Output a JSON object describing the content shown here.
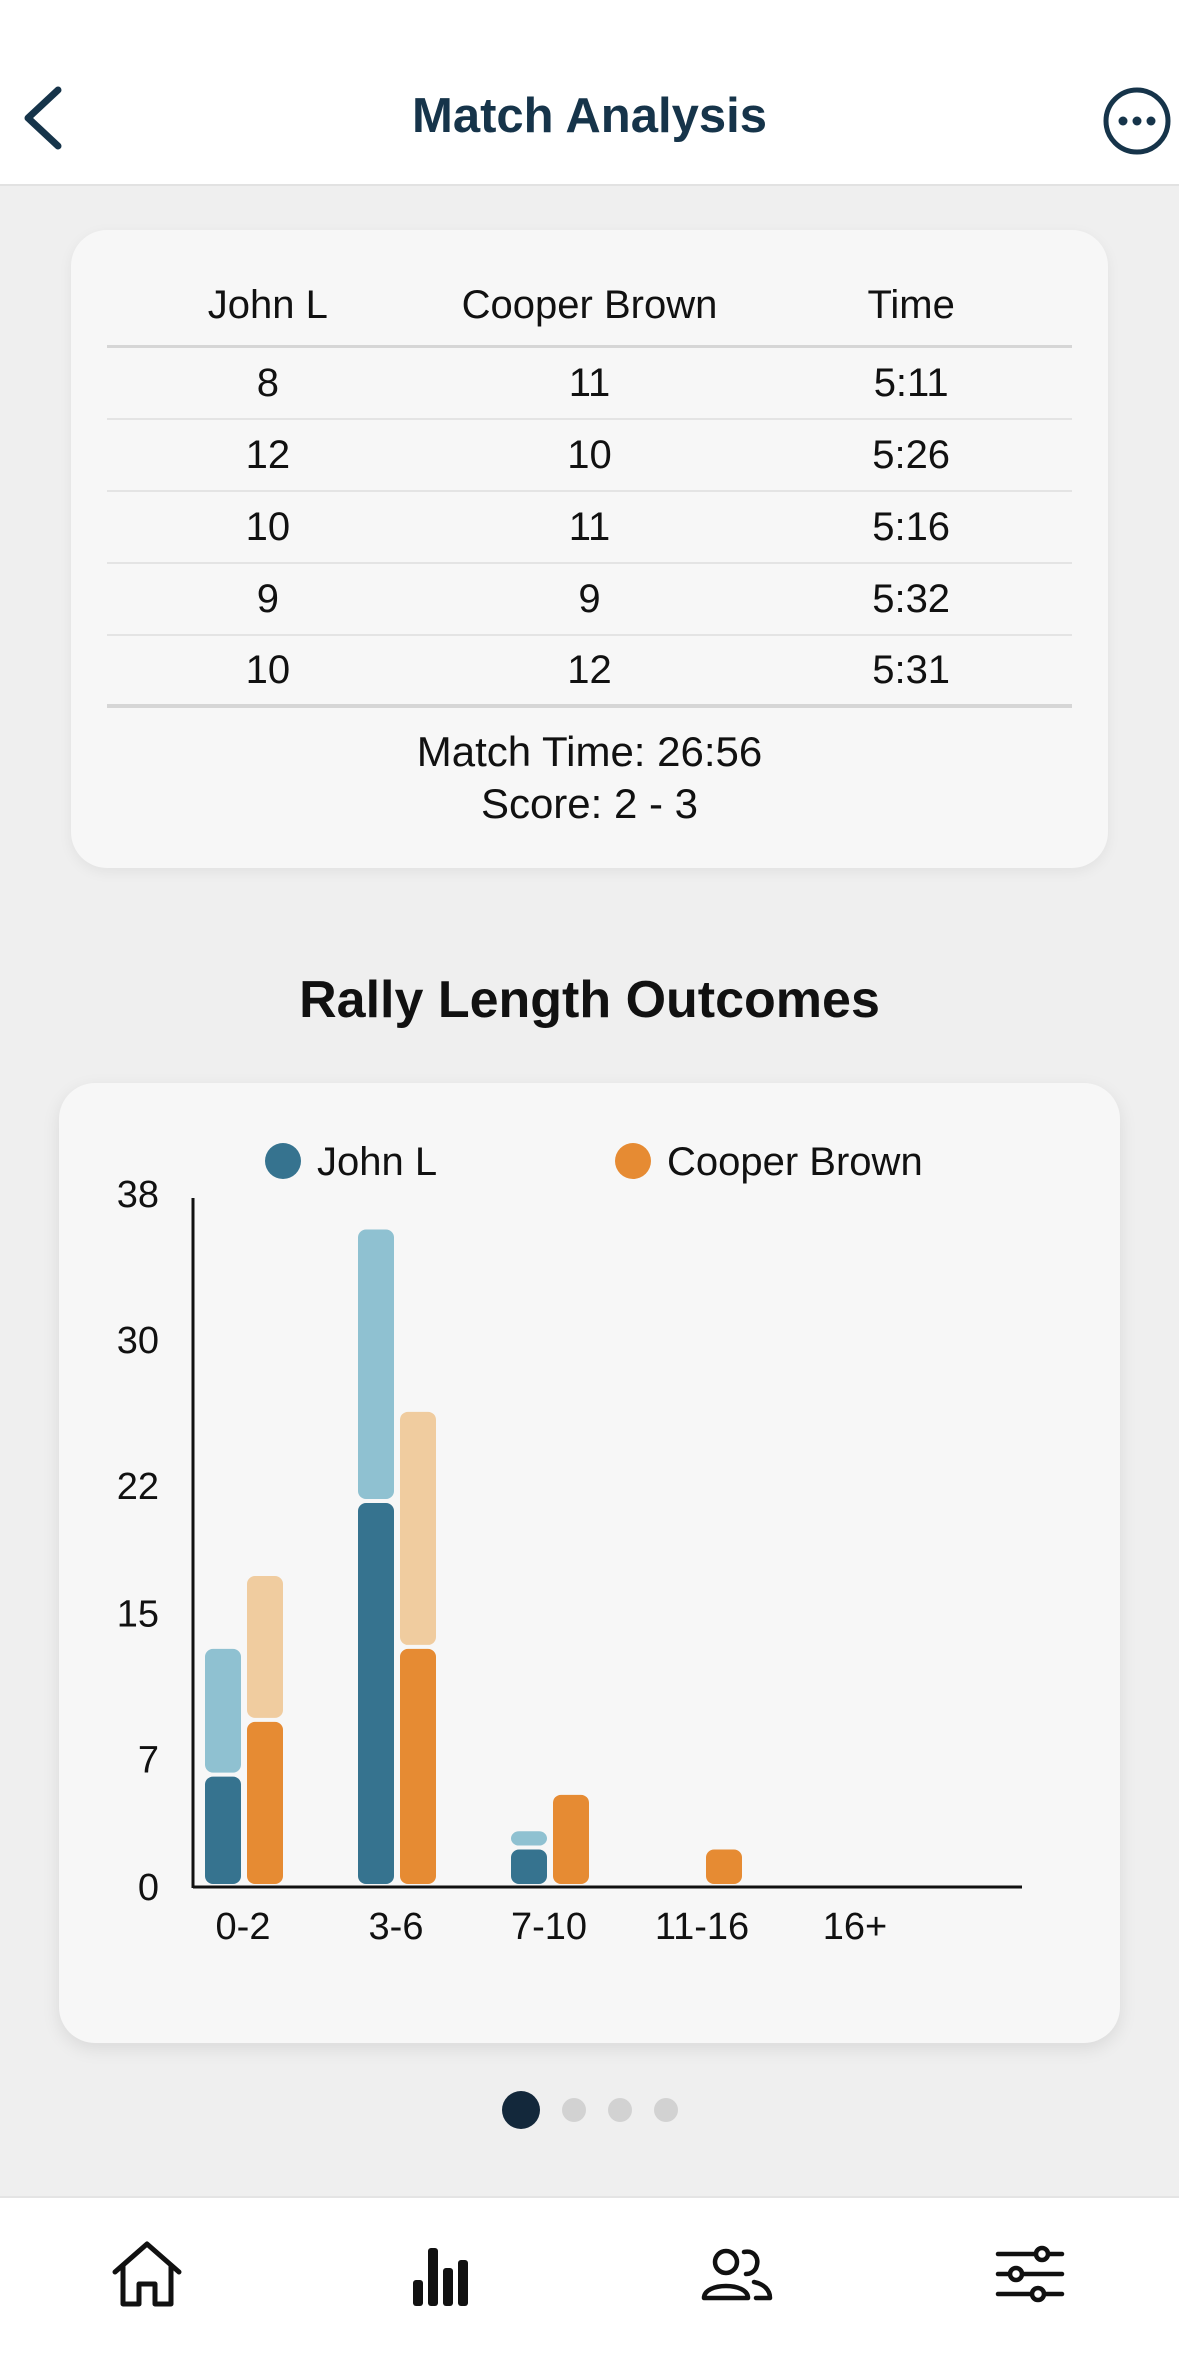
{
  "header": {
    "title": "Match Analysis",
    "back_icon": "chevron-left-icon",
    "more_icon": "more-horizontal-circle-icon"
  },
  "score_table": {
    "columns": [
      "John L",
      "Cooper Brown",
      "Time"
    ],
    "rows": [
      [
        "8",
        "11",
        "5:11"
      ],
      [
        "12",
        "10",
        "5:26"
      ],
      [
        "10",
        "11",
        "5:16"
      ],
      [
        "9",
        "9",
        "5:32"
      ],
      [
        "10",
        "12",
        "5:31"
      ]
    ],
    "match_time": "Match Time: 26:56",
    "score": "Score: 2 - 3"
  },
  "section": {
    "title": "Rally Length Outcomes"
  },
  "colors": {
    "john_dark": "#36738f",
    "john_light": "#8fc1d1",
    "cooper_dark": "#e68b33",
    "cooper_light": "#f0cc9f",
    "accent": "#16344a"
  },
  "chart_data": {
    "type": "bar",
    "categories": [
      "0-2",
      "3-6",
      "7-10",
      "11-16",
      "16+"
    ],
    "yticks": [
      0,
      7,
      15,
      22,
      30,
      38
    ],
    "ylim": [
      0,
      38
    ],
    "legend_position": "top",
    "series": [
      {
        "name": "John L",
        "values": [
          6,
          21,
          2,
          0,
          0
        ],
        "color": "#36738f"
      },
      {
        "name": "John L",
        "values": [
          7,
          15,
          1,
          0,
          0
        ],
        "color": "#8fc1d1"
      },
      {
        "name": "Cooper Brown",
        "values": [
          9,
          13,
          5,
          2,
          0
        ],
        "color": "#e68b33"
      },
      {
        "name": "Cooper Brown",
        "values": [
          8,
          13,
          0,
          0,
          0
        ],
        "color": "#f0cc9f"
      }
    ],
    "legend": [
      {
        "name": "John L",
        "color": "#36738f"
      },
      {
        "name": "Cooper Brown",
        "color": "#e68b33"
      }
    ]
  },
  "pager": {
    "count": 4,
    "active": 0
  },
  "tabbar": {
    "items": [
      {
        "icon": "home-icon"
      },
      {
        "icon": "bar-chart-icon"
      },
      {
        "icon": "users-icon"
      },
      {
        "icon": "sliders-icon"
      }
    ]
  }
}
